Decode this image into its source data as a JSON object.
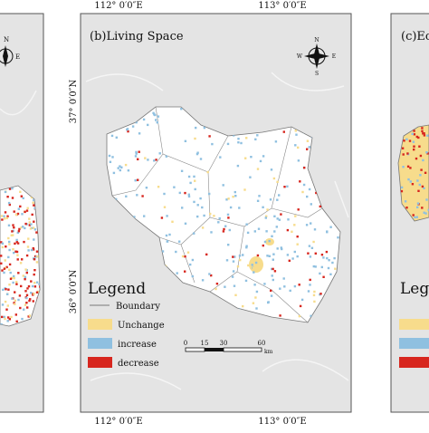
{
  "longitude_labels": [
    "112° 0′0″E",
    "113° 0′0″E"
  ],
  "latitude_labels": [
    "37° 0′0″N",
    "36° 0′0″N"
  ],
  "left_panel": {
    "compass": [
      "N",
      "E"
    ]
  },
  "center_panel": {
    "title": "(b)Living Space",
    "compass": {
      "north": "N",
      "south": "S",
      "west": "W",
      "east": "E"
    },
    "legend": {
      "title": "Legend",
      "items": [
        "Boundary",
        "Unchange",
        "increase",
        "decrease"
      ]
    },
    "scale_bar": {
      "labels": [
        "0",
        "15",
        "30",
        "60"
      ],
      "unit": "km"
    }
  },
  "right_panel": {
    "title": "(c)Ec",
    "legend_title": "Lege"
  }
}
